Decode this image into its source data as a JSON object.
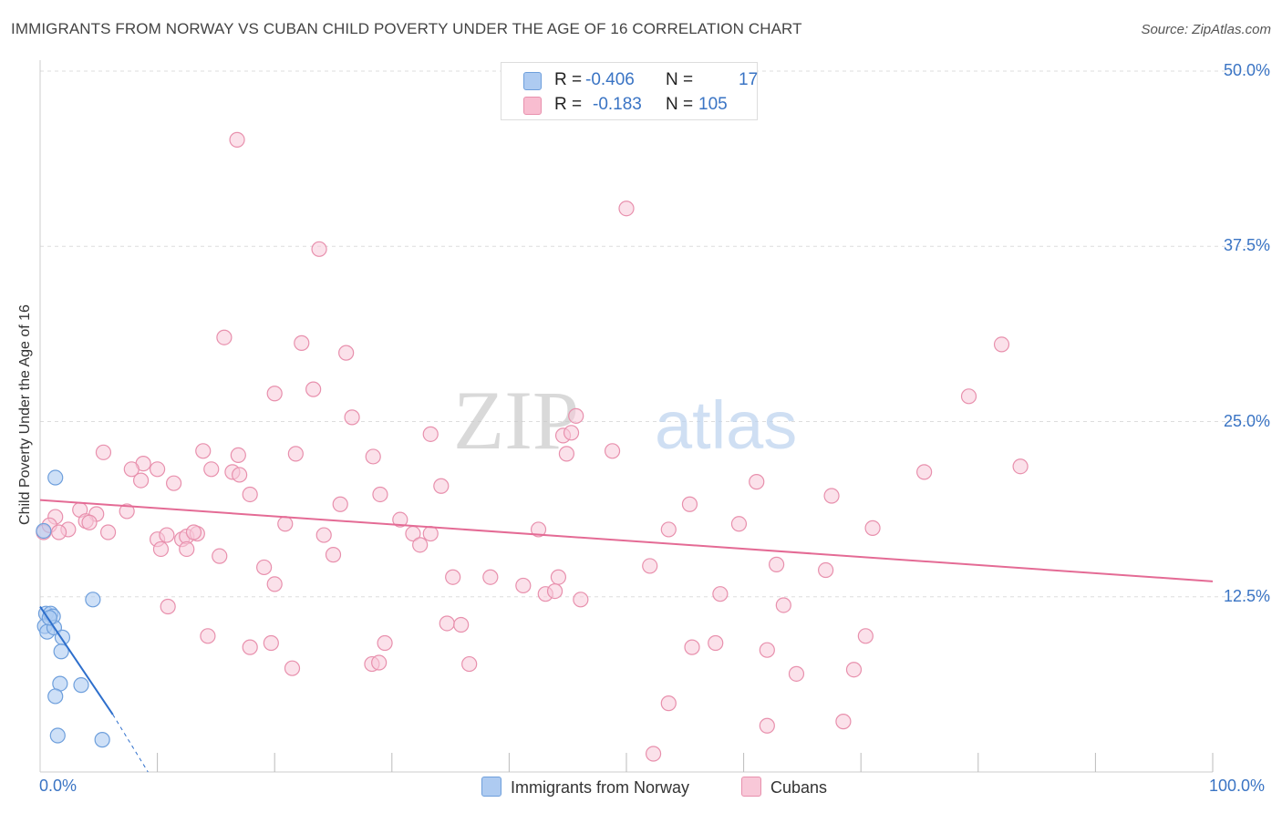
{
  "header": {
    "title": "IMMIGRANTS FROM NORWAY VS CUBAN CHILD POVERTY UNDER THE AGE OF 16 CORRELATION CHART",
    "source": "Source: ZipAtlas.com"
  },
  "watermark": {
    "zip": "ZIP",
    "atlas": "atlas"
  },
  "legend": {
    "rows": [
      {
        "r_label": "R =",
        "r_value": "-0.406",
        "n_label": "N =",
        "n_value": "17",
        "color": "#aecbf1"
      },
      {
        "r_label": "R =",
        "r_value": "-0.183",
        "n_label": "N =",
        "n_value": "105",
        "color": "#f8bdd0"
      }
    ]
  },
  "bottom_legend": {
    "norway": "Immigrants from Norway",
    "cubans": "Cubans"
  },
  "colors": {
    "norway_fill": "#aecbf1",
    "norway_stroke": "#6e9fdc",
    "norway_line": "#2e6fcc",
    "cuban_fill": "#f8c8d8",
    "cuban_stroke": "#e890ad",
    "cuban_line": "#e46b95",
    "axis_text": "#3a74c4",
    "grid": "#dddddd"
  },
  "chart_data": {
    "type": "scatter",
    "title": "IMMIGRANTS FROM NORWAY VS CUBAN CHILD POVERTY UNDER THE AGE OF 16 CORRELATION CHART",
    "xlabel": "",
    "ylabel": "Child Poverty Under the Age of 16",
    "xlim": [
      0,
      100
    ],
    "ylim": [
      0,
      50
    ],
    "x_tick_labels": [
      "0.0%",
      "100.0%"
    ],
    "y_ticks": [
      12.5,
      25.0,
      37.5,
      50.0
    ],
    "y_tick_labels": [
      "12.5%",
      "25.0%",
      "37.5%",
      "50.0%"
    ],
    "grid": true,
    "series": [
      {
        "name": "Immigrants from Norway",
        "r": -0.406,
        "n": 17,
        "points": [
          [
            0.3,
            17.2
          ],
          [
            1.3,
            21.0
          ],
          [
            0.5,
            11.3
          ],
          [
            0.9,
            11.3
          ],
          [
            1.1,
            11.1
          ],
          [
            0.4,
            10.4
          ],
          [
            0.6,
            10.0
          ],
          [
            1.2,
            10.3
          ],
          [
            1.9,
            9.6
          ],
          [
            1.8,
            8.6
          ],
          [
            4.5,
            12.3
          ],
          [
            1.7,
            6.3
          ],
          [
            3.5,
            6.2
          ],
          [
            1.3,
            5.4
          ],
          [
            1.5,
            2.6
          ],
          [
            5.3,
            2.3
          ],
          [
            0.8,
            11.0
          ]
        ],
        "trend": {
          "x0": 0.0,
          "y0": 11.8,
          "x1": 6.2,
          "y1": 4.1,
          "dash_x1": 9.2,
          "dash_y1": 0.0
        }
      },
      {
        "name": "Cubans",
        "r": -0.183,
        "n": 105,
        "points": [
          [
            16.8,
            45.1
          ],
          [
            50.0,
            40.2
          ],
          [
            23.8,
            37.3
          ],
          [
            15.7,
            31.0
          ],
          [
            22.3,
            30.6
          ],
          [
            26.1,
            29.9
          ],
          [
            82.0,
            30.5
          ],
          [
            20.0,
            27.0
          ],
          [
            23.3,
            27.3
          ],
          [
            79.2,
            26.8
          ],
          [
            26.6,
            25.3
          ],
          [
            33.3,
            24.1
          ],
          [
            44.6,
            24.0
          ],
          [
            45.3,
            24.2
          ],
          [
            45.7,
            25.4
          ],
          [
            5.4,
            22.8
          ],
          [
            8.8,
            22.0
          ],
          [
            13.9,
            22.9
          ],
          [
            16.9,
            22.6
          ],
          [
            21.8,
            22.7
          ],
          [
            28.4,
            22.5
          ],
          [
            48.8,
            22.9
          ],
          [
            44.9,
            22.7
          ],
          [
            7.8,
            21.6
          ],
          [
            10.0,
            21.6
          ],
          [
            14.6,
            21.6
          ],
          [
            16.4,
            21.4
          ],
          [
            75.4,
            21.4
          ],
          [
            83.6,
            21.8
          ],
          [
            8.6,
            20.8
          ],
          [
            11.4,
            20.6
          ],
          [
            61.1,
            20.7
          ],
          [
            17.9,
            19.8
          ],
          [
            29.0,
            19.8
          ],
          [
            34.2,
            20.4
          ],
          [
            25.6,
            19.1
          ],
          [
            55.4,
            19.1
          ],
          [
            67.5,
            19.7
          ],
          [
            3.4,
            18.7
          ],
          [
            4.8,
            18.4
          ],
          [
            7.4,
            18.6
          ],
          [
            1.3,
            18.2
          ],
          [
            3.9,
            17.9
          ],
          [
            4.2,
            17.8
          ],
          [
            2.4,
            17.3
          ],
          [
            0.3,
            17.1
          ],
          [
            0.8,
            17.6
          ],
          [
            1.6,
            17.1
          ],
          [
            5.8,
            17.1
          ],
          [
            10.0,
            16.6
          ],
          [
            10.8,
            16.9
          ],
          [
            12.1,
            16.6
          ],
          [
            12.5,
            16.8
          ],
          [
            13.4,
            17.0
          ],
          [
            20.9,
            17.7
          ],
          [
            24.2,
            16.9
          ],
          [
            30.7,
            18.0
          ],
          [
            31.8,
            17.0
          ],
          [
            33.3,
            17.0
          ],
          [
            42.5,
            17.3
          ],
          [
            53.6,
            17.3
          ],
          [
            59.6,
            17.7
          ],
          [
            71.0,
            17.4
          ],
          [
            10.3,
            15.9
          ],
          [
            12.5,
            15.9
          ],
          [
            15.3,
            15.4
          ],
          [
            25.0,
            15.5
          ],
          [
            32.4,
            16.2
          ],
          [
            19.1,
            14.6
          ],
          [
            52.0,
            14.7
          ],
          [
            62.8,
            14.8
          ],
          [
            67.0,
            14.4
          ],
          [
            35.2,
            13.9
          ],
          [
            38.4,
            13.9
          ],
          [
            44.2,
            13.9
          ],
          [
            20.0,
            13.4
          ],
          [
            41.2,
            13.3
          ],
          [
            43.1,
            12.7
          ],
          [
            58.0,
            12.7
          ],
          [
            43.9,
            12.9
          ],
          [
            46.1,
            12.3
          ],
          [
            10.9,
            11.8
          ],
          [
            63.4,
            11.9
          ],
          [
            34.7,
            10.6
          ],
          [
            35.9,
            10.5
          ],
          [
            14.3,
            9.7
          ],
          [
            19.7,
            9.2
          ],
          [
            17.9,
            8.9
          ],
          [
            29.4,
            9.2
          ],
          [
            55.6,
            8.9
          ],
          [
            57.6,
            9.2
          ],
          [
            62.0,
            8.7
          ],
          [
            70.4,
            9.7
          ],
          [
            21.5,
            7.4
          ],
          [
            28.3,
            7.7
          ],
          [
            28.9,
            7.8
          ],
          [
            36.6,
            7.7
          ],
          [
            64.5,
            7.0
          ],
          [
            69.4,
            7.3
          ],
          [
            53.6,
            4.9
          ],
          [
            62.0,
            3.3
          ],
          [
            68.5,
            3.6
          ],
          [
            52.3,
            1.3
          ],
          [
            13.1,
            17.1
          ],
          [
            17.0,
            21.2
          ]
        ],
        "trend": {
          "x0": 0.0,
          "y0": 19.4,
          "x1": 100.0,
          "y1": 13.6
        }
      }
    ]
  }
}
